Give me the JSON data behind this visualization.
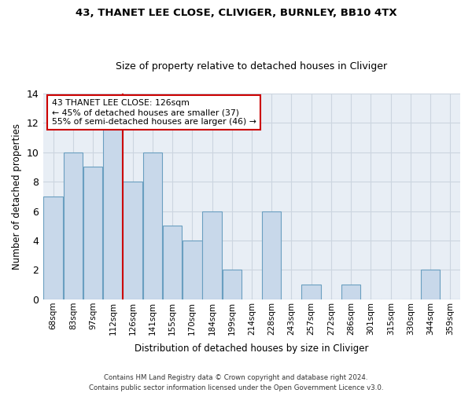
{
  "title1": "43, THANET LEE CLOSE, CLIVIGER, BURNLEY, BB10 4TX",
  "title2": "Size of property relative to detached houses in Cliviger",
  "xlabel": "Distribution of detached houses by size in Cliviger",
  "ylabel": "Number of detached properties",
  "categories": [
    "68sqm",
    "83sqm",
    "97sqm",
    "112sqm",
    "126sqm",
    "141sqm",
    "155sqm",
    "170sqm",
    "184sqm",
    "199sqm",
    "214sqm",
    "228sqm",
    "243sqm",
    "257sqm",
    "272sqm",
    "286sqm",
    "301sqm",
    "315sqm",
    "330sqm",
    "344sqm",
    "359sqm"
  ],
  "values": [
    7,
    10,
    9,
    12,
    8,
    10,
    5,
    4,
    6,
    2,
    0,
    6,
    0,
    1,
    0,
    1,
    0,
    0,
    0,
    2,
    0
  ],
  "bar_color": "#c8d8ea",
  "bar_edge_color": "#6a9fc0",
  "vline_x": 3.5,
  "vline_color": "#cc0000",
  "annotation_text": "43 THANET LEE CLOSE: 126sqm\n← 45% of detached houses are smaller (37)\n55% of semi-detached houses are larger (46) →",
  "annotation_box_color": "#ffffff",
  "annotation_box_edge": "#cc0000",
  "ylim": [
    0,
    14
  ],
  "yticks": [
    0,
    2,
    4,
    6,
    8,
    10,
    12,
    14
  ],
  "footnote": "Contains HM Land Registry data © Crown copyright and database right 2024.\nContains public sector information licensed under the Open Government Licence v3.0.",
  "grid_color": "#ccd5e0",
  "background_color": "#e8eef5"
}
